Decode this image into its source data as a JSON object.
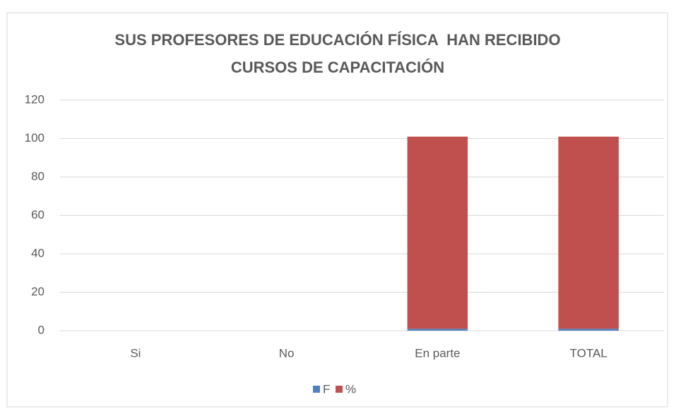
{
  "chart_data": {
    "type": "stacked_bar",
    "title": [
      "SUS PROFESORES DE EDUCACIÓN FÍSICA  HAN RECIBIDO",
      "CURSOS DE CAPACITACIÓN"
    ],
    "categories": [
      "Si",
      "No",
      "En parte",
      "TOTAL"
    ],
    "series": [
      {
        "name": "F",
        "color": "#4f81bd",
        "values": [
          0,
          0,
          1,
          1
        ]
      },
      {
        "name": "%",
        "color": "#c0504d",
        "values": [
          0,
          0,
          100,
          100
        ]
      }
    ],
    "ylim": [
      0,
      120
    ],
    "yticks": [
      0,
      20,
      40,
      60,
      80,
      100,
      120
    ],
    "grid": true,
    "legend": "bottom"
  }
}
